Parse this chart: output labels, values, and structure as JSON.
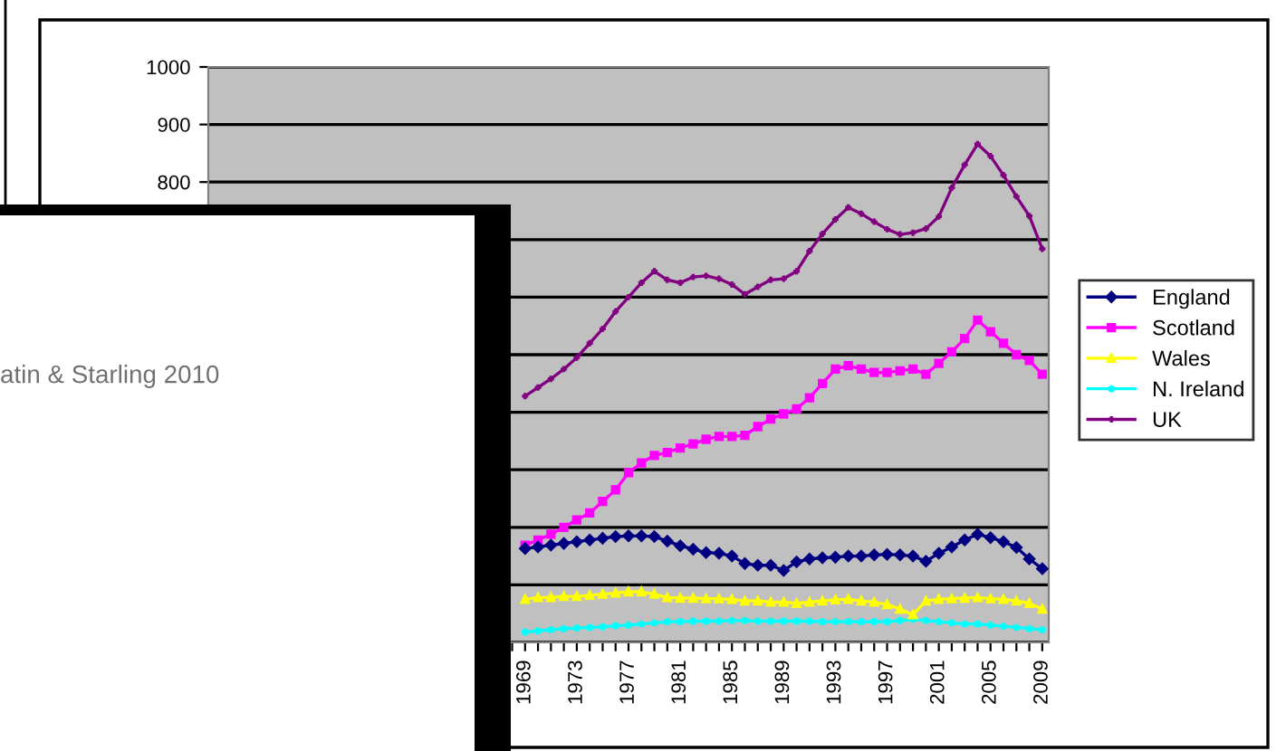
{
  "chart_data": {
    "type": "line",
    "categories": [
      null,
      null,
      null,
      null,
      null,
      null,
      null,
      null,
      null,
      null,
      null,
      null,
      null,
      null,
      null,
      null,
      null,
      null,
      null,
      null,
      null,
      null,
      null,
      null,
      "1969",
      null,
      null,
      null,
      "1973",
      null,
      null,
      null,
      "1977",
      null,
      null,
      null,
      "1981",
      null,
      null,
      null,
      "1985",
      null,
      null,
      null,
      "1989",
      null,
      null,
      null,
      "1993",
      null,
      null,
      null,
      "1997",
      null,
      null,
      null,
      "2001",
      null,
      null,
      null,
      "2005",
      null,
      null,
      null,
      "2009"
    ],
    "series": [
      {
        "name": "England",
        "color": "#000080",
        "marker": "diamond",
        "values": [
          null,
          null,
          null,
          null,
          null,
          null,
          null,
          null,
          null,
          null,
          null,
          null,
          null,
          null,
          null,
          null,
          null,
          null,
          null,
          null,
          null,
          null,
          null,
          null,
          163,
          166,
          169,
          172,
          175,
          178,
          181,
          184,
          185,
          185,
          184,
          176,
          168,
          162,
          156,
          155,
          150,
          137,
          134,
          134,
          125,
          140,
          145,
          147,
          148,
          150,
          150,
          152,
          153,
          152,
          150,
          141,
          155,
          166,
          178,
          188,
          182,
          175,
          165,
          145,
          128
        ]
      },
      {
        "name": "Scotland",
        "color": "#ff00ff",
        "marker": "square",
        "values": [
          null,
          null,
          null,
          null,
          null,
          null,
          null,
          null,
          null,
          null,
          null,
          null,
          null,
          null,
          null,
          null,
          null,
          null,
          null,
          null,
          null,
          null,
          null,
          null,
          169,
          178,
          188,
          200,
          213,
          225,
          245,
          265,
          295,
          312,
          325,
          330,
          338,
          345,
          353,
          358,
          358,
          360,
          375,
          388,
          397,
          406,
          425,
          450,
          475,
          481,
          475,
          469,
          469,
          472,
          475,
          466,
          485,
          505,
          528,
          560,
          540,
          520,
          500,
          490,
          466
        ]
      },
      {
        "name": "Wales",
        "color": "#ffff00",
        "marker": "triangle",
        "values": [
          null,
          null,
          null,
          null,
          null,
          null,
          null,
          null,
          null,
          null,
          null,
          null,
          null,
          null,
          null,
          null,
          null,
          null,
          null,
          null,
          null,
          null,
          null,
          null,
          75,
          78,
          78,
          80,
          80,
          82,
          84,
          86,
          88,
          88,
          84,
          78,
          77,
          77,
          76,
          76,
          75,
          72,
          72,
          70,
          70,
          68,
          70,
          72,
          74,
          75,
          72,
          70,
          66,
          58,
          48,
          72,
          75,
          76,
          77,
          78,
          76,
          75,
          72,
          68,
          58
        ]
      },
      {
        "name": "N. Ireland",
        "color": "#00ffff",
        "marker": "star",
        "values": [
          null,
          null,
          null,
          null,
          null,
          null,
          null,
          null,
          null,
          null,
          null,
          null,
          null,
          null,
          null,
          null,
          null,
          null,
          null,
          null,
          null,
          null,
          null,
          null,
          18,
          20,
          22,
          24,
          25,
          26,
          27,
          29,
          30,
          32,
          34,
          36,
          36,
          37,
          37,
          37,
          38,
          38,
          37,
          37,
          37,
          37,
          37,
          36,
          36,
          36,
          36,
          36,
          36,
          38,
          40,
          38,
          36,
          34,
          32,
          32,
          30,
          28,
          26,
          24,
          22
        ]
      },
      {
        "name": "UK",
        "color": "#800080",
        "marker": "cross",
        "values": [
          null,
          null,
          null,
          null,
          null,
          null,
          null,
          null,
          null,
          null,
          null,
          null,
          null,
          null,
          null,
          null,
          null,
          null,
          null,
          null,
          null,
          null,
          null,
          null,
          428,
          443,
          458,
          475,
          495,
          520,
          545,
          575,
          600,
          625,
          645,
          630,
          625,
          635,
          637,
          632,
          622,
          605,
          618,
          630,
          632,
          645,
          680,
          710,
          735,
          756,
          745,
          731,
          718,
          709,
          712,
          719,
          740,
          790,
          830,
          866,
          845,
          812,
          775,
          741,
          684
        ]
      }
    ],
    "ylim": [
      0,
      1000
    ],
    "yticks": [
      {
        "value": 0,
        "label": null
      },
      {
        "value": 100,
        "label": null
      },
      {
        "value": 200,
        "label": null
      },
      {
        "value": 300,
        "label": null
      },
      {
        "value": 400,
        "label": null
      },
      {
        "value": 500,
        "label": null
      },
      {
        "value": 600,
        "label": null
      },
      {
        "value": 700,
        "label": null
      },
      800,
      900,
      1000
    ],
    "grid": "y",
    "legend": "right",
    "line_style": "solid",
    "annotations": [
      "atin & Starling 2010"
    ]
  }
}
